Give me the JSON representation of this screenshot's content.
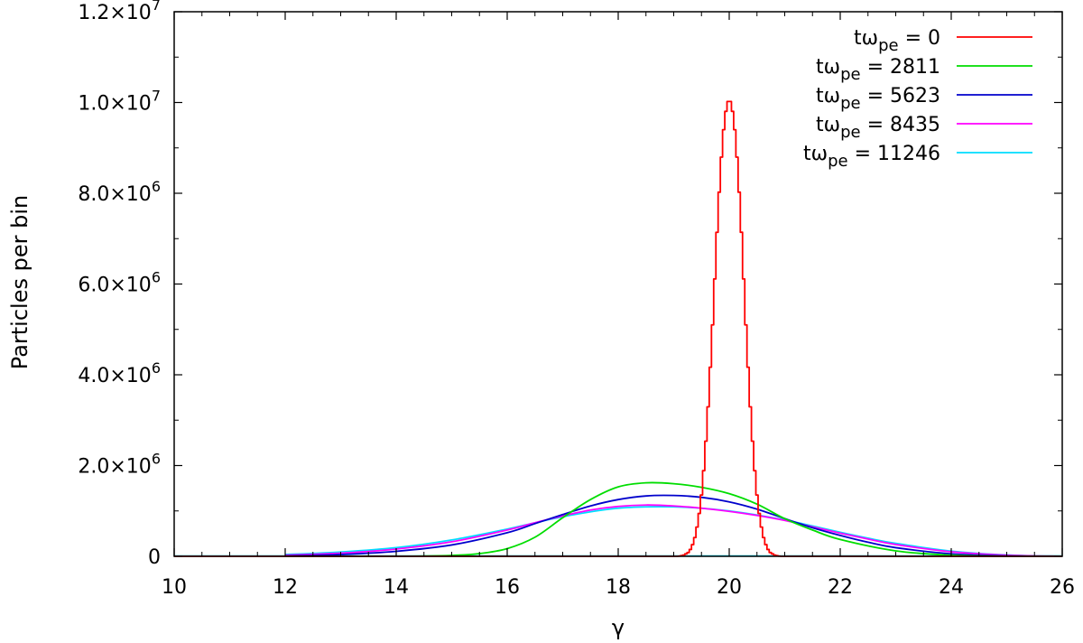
{
  "chart_data": {
    "type": "line",
    "xlabel": "γ",
    "ylabel": "Particles per bin",
    "xlim": [
      10,
      26
    ],
    "ylim": [
      0,
      12000000
    ],
    "x_ticks": [
      10,
      12,
      14,
      16,
      18,
      20,
      22,
      24,
      26
    ],
    "x_tick_labels": [
      "10",
      "12",
      "14",
      "16",
      "18",
      "20",
      "22",
      "24",
      "26"
    ],
    "y_ticks": [
      {
        "value": 0,
        "mantissa": "0",
        "exponent": ""
      },
      {
        "value": 2000000,
        "mantissa": "2.0×10",
        "exponent": "6"
      },
      {
        "value": 4000000,
        "mantissa": "4.0×10",
        "exponent": "6"
      },
      {
        "value": 6000000,
        "mantissa": "6.0×10",
        "exponent": "6"
      },
      {
        "value": 8000000,
        "mantissa": "8.0×10",
        "exponent": "6"
      },
      {
        "value": 10000000,
        "mantissa": "1.0×10",
        "exponent": "7"
      },
      {
        "value": 12000000,
        "mantissa": "1.2×10",
        "exponent": "7"
      }
    ],
    "grid": false,
    "legend_position": "top-right",
    "series": [
      {
        "legend_prefix": "tω",
        "legend_sub": "pe",
        "legend_value": "= 0",
        "color": "#ff0000",
        "style": "steps",
        "x": [
          19.0,
          19.1,
          19.2,
          19.3,
          19.4,
          19.5,
          19.6,
          19.7,
          19.8,
          19.9,
          20.0,
          20.1,
          20.2,
          20.3,
          20.4,
          20.5,
          20.6,
          20.7,
          20.8,
          20.9,
          21.0
        ],
        "y": [
          0,
          5000,
          40000,
          150000,
          520000,
          1350000,
          2900000,
          5100000,
          7600000,
          9400000,
          10050000,
          9400000,
          7600000,
          5100000,
          2900000,
          1350000,
          520000,
          150000,
          40000,
          5000,
          0
        ]
      },
      {
        "legend_prefix": "tω",
        "legend_sub": "pe",
        "legend_value": "= 2811",
        "color": "#00dd00",
        "style": "line",
        "x": [
          12,
          14,
          15,
          15.5,
          16,
          16.5,
          17,
          17.5,
          18,
          18.5,
          19,
          19.5,
          20,
          20.5,
          21,
          21.5,
          22,
          23,
          24,
          25,
          26
        ],
        "y": [
          0,
          0,
          20000,
          60000,
          170000,
          420000,
          850000,
          1250000,
          1530000,
          1620000,
          1600000,
          1520000,
          1380000,
          1150000,
          830000,
          580000,
          370000,
          120000,
          25000,
          3000,
          0
        ]
      },
      {
        "legend_prefix": "tω",
        "legend_sub": "pe",
        "legend_value": "= 5623",
        "color": "#0000cc",
        "style": "line",
        "x": [
          12,
          13,
          14,
          15,
          16,
          16.5,
          17,
          17.5,
          18,
          18.5,
          19,
          19.5,
          20,
          20.5,
          21,
          21.5,
          22,
          22.5,
          23,
          24,
          25,
          26
        ],
        "y": [
          10000,
          40000,
          110000,
          250000,
          520000,
          720000,
          920000,
          1110000,
          1250000,
          1330000,
          1340000,
          1300000,
          1200000,
          1040000,
          830000,
          630000,
          460000,
          310000,
          190000,
          55000,
          10000,
          0
        ]
      },
      {
        "legend_prefix": "tω",
        "legend_sub": "pe",
        "legend_value": "= 8435",
        "color": "#ff00ff",
        "style": "line",
        "x": [
          12,
          13,
          14,
          15,
          16,
          16.5,
          17,
          17.5,
          18,
          18.5,
          19,
          19.5,
          20,
          20.5,
          21,
          21.5,
          22,
          22.5,
          23,
          24,
          25,
          26
        ],
        "y": [
          25000,
          70000,
          160000,
          320000,
          580000,
          740000,
          890000,
          1020000,
          1100000,
          1130000,
          1110000,
          1060000,
          990000,
          900000,
          790000,
          650000,
          510000,
          380000,
          260000,
          100000,
          25000,
          0
        ]
      },
      {
        "legend_prefix": "tω",
        "legend_sub": "pe",
        "legend_value": "= 11246",
        "color": "#00ddff",
        "style": "line",
        "x": [
          12,
          13,
          14,
          15,
          16,
          16.5,
          17,
          17.5,
          18,
          18.5,
          19,
          19.5,
          20,
          20.5,
          21,
          21.5,
          22,
          22.5,
          23,
          24,
          25,
          26
        ],
        "y": [
          40000,
          95000,
          190000,
          360000,
          600000,
          740000,
          870000,
          980000,
          1060000,
          1090000,
          1090000,
          1060000,
          1000000,
          910000,
          800000,
          670000,
          530000,
          400000,
          285000,
          115000,
          30000,
          3000
        ]
      }
    ]
  }
}
